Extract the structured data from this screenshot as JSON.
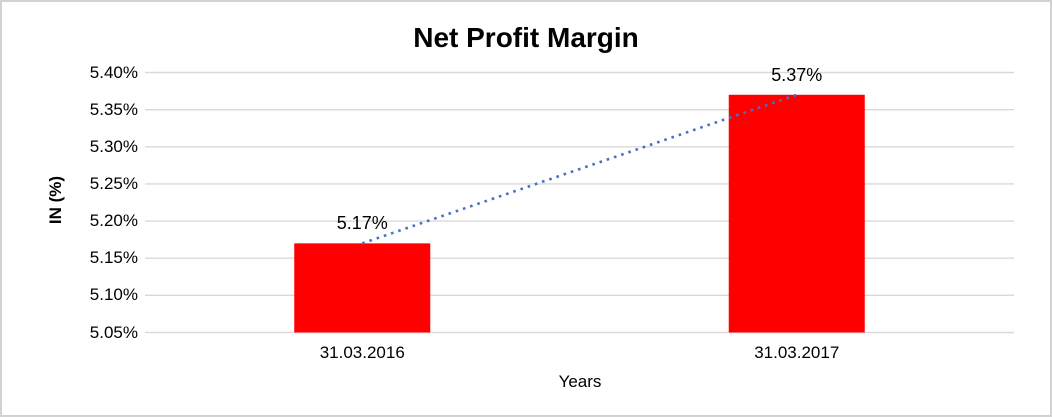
{
  "chart_data": {
    "type": "bar",
    "title": "Net Profit Margin",
    "categories": [
      "31.03.2016",
      "31.03.2017"
    ],
    "values": [
      5.17,
      5.37
    ],
    "value_labels": [
      "5.17%",
      "5.37%"
    ],
    "xlabel": "Years",
    "ylabel": "IN (%)",
    "ylim": [
      5.05,
      5.4
    ],
    "ytick_step": 0.05,
    "ytick_labels": [
      "5.40%",
      "5.35%",
      "5.30%",
      "5.25%",
      "5.20%",
      "5.15%",
      "5.10%",
      "5.05%"
    ],
    "grid": true,
    "legend": "none",
    "trendline": {
      "style": "dotted",
      "connects_values": [
        5.17,
        5.37
      ]
    },
    "colors": {
      "bar": "#FF0000",
      "trendline": "#4472C4",
      "gridline": "#D9D9D9",
      "text": "#000000",
      "frame_border": "#D2D2D2",
      "background": "#FFFFFF"
    }
  }
}
